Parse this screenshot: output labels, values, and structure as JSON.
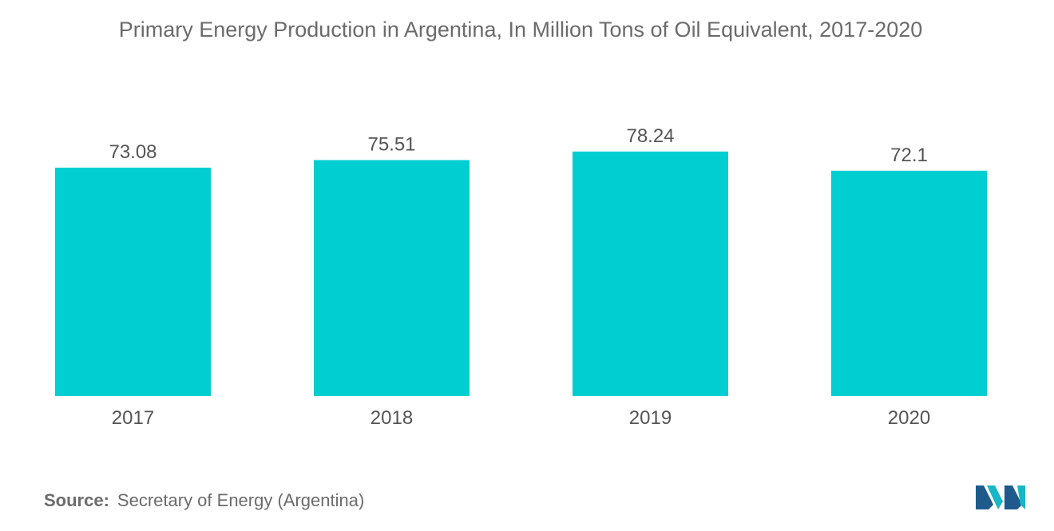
{
  "title": "Primary Energy Production in Argentina, In Million Tons of Oil Equivalent, 2017-2020",
  "source": {
    "label": "Source:",
    "text": "Secretary of Energy (Argentina)"
  },
  "colors": {
    "bar": "#00CED1",
    "text": "#555555",
    "title": "#6b6b6b",
    "logo_dark": "#1E5A8C",
    "logo_light": "#17B7C6"
  },
  "chart_data": {
    "type": "bar",
    "title": "Primary Energy Production in Argentina, In Million Tons of Oil Equivalent, 2017-2020",
    "xlabel": "",
    "ylabel": "",
    "categories": [
      "2017",
      "2018",
      "2019",
      "2020"
    ],
    "values": [
      73.08,
      75.51,
      78.24,
      72.1
    ],
    "data_labels": [
      "73.08",
      "75.51",
      "78.24",
      "72.1"
    ],
    "ylim": [
      0,
      80
    ],
    "grid": false,
    "legend": "none"
  }
}
